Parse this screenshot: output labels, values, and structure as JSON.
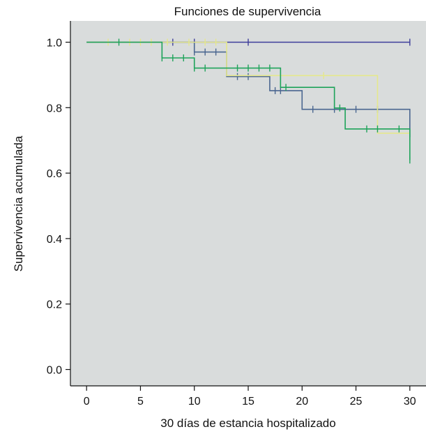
{
  "chart_data": {
    "type": "line",
    "title": "Funciones de supervivencia",
    "xlabel": "30 días de estancia hospitalizado",
    "ylabel": "Supervivencia acumulada",
    "xlim": [
      -1.5,
      31.5
    ],
    "ylim": [
      -0.05,
      1.065
    ],
    "x_ticks": [
      0,
      5,
      10,
      15,
      20,
      25,
      30
    ],
    "x_tick_labels": [
      "0",
      "5",
      "10",
      "15",
      "20",
      "25",
      "30"
    ],
    "y_ticks": [
      0.0,
      0.2,
      0.4,
      0.6,
      0.8,
      1.0
    ],
    "y_tick_labels": [
      "0.0",
      "0.2",
      "0.4",
      "0.6",
      "0.8",
      "1.0"
    ],
    "grid": false,
    "legend": "none",
    "background_color": "#d9dcdc",
    "series": [
      {
        "color": "#3d3d9a",
        "steps": [
          [
            0,
            1.0
          ],
          [
            30,
            1.0
          ]
        ],
        "censor_marks": [
          [
            8,
            1.0
          ],
          [
            10,
            1.0
          ],
          [
            15,
            1.0
          ],
          [
            30,
            1.0
          ]
        ]
      },
      {
        "color": "#4a6690",
        "steps": [
          [
            0,
            1.0
          ],
          [
            10,
            0.97
          ],
          [
            13,
            0.895
          ],
          [
            17,
            0.852
          ],
          [
            20,
            0.795
          ],
          [
            30,
            0.71
          ]
        ],
        "censor_marks": [
          [
            10,
            0.97
          ],
          [
            11,
            0.97
          ],
          [
            12,
            0.97
          ],
          [
            14,
            0.895
          ],
          [
            15,
            0.895
          ],
          [
            17.5,
            0.852
          ],
          [
            18,
            0.852
          ],
          [
            21,
            0.795
          ],
          [
            23,
            0.795
          ],
          [
            25,
            0.795
          ],
          [
            27,
            0.795
          ],
          [
            30,
            0.71
          ]
        ]
      },
      {
        "color": "#e5e88c",
        "steps": [
          [
            0,
            1.0
          ],
          [
            13,
            0.898
          ],
          [
            27,
            0.722
          ],
          [
            30,
            0.722
          ]
        ],
        "censor_marks": [
          [
            2,
            1.0
          ],
          [
            4,
            1.0
          ],
          [
            5,
            1.0
          ],
          [
            6,
            1.0
          ],
          [
            7.5,
            1.0
          ],
          [
            9.5,
            1.0
          ],
          [
            11,
            1.0
          ],
          [
            12,
            1.0
          ],
          [
            22,
            0.898
          ],
          [
            30,
            0.722
          ]
        ]
      },
      {
        "color": "#1ea35a",
        "steps": [
          [
            0,
            1.0
          ],
          [
            7,
            0.952
          ],
          [
            10,
            0.921
          ],
          [
            18,
            0.862
          ],
          [
            23,
            0.799
          ],
          [
            24,
            0.735
          ],
          [
            30,
            0.64
          ]
        ],
        "censor_marks": [
          [
            3,
            1.0
          ],
          [
            7,
            0.952
          ],
          [
            8,
            0.952
          ],
          [
            9,
            0.952
          ],
          [
            10,
            0.921
          ],
          [
            11,
            0.921
          ],
          [
            14,
            0.921
          ],
          [
            15,
            0.921
          ],
          [
            16,
            0.921
          ],
          [
            17,
            0.921
          ],
          [
            18.5,
            0.862
          ],
          [
            23.5,
            0.799
          ],
          [
            26,
            0.735
          ],
          [
            27,
            0.735
          ],
          [
            29,
            0.735
          ],
          [
            30,
            0.64
          ]
        ]
      }
    ]
  }
}
